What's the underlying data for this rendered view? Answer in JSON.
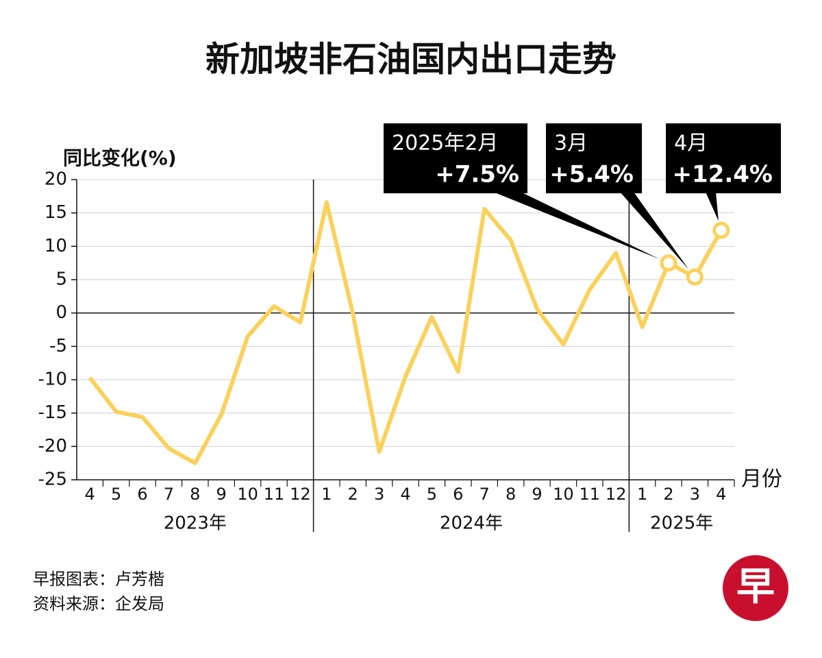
{
  "chart_data": {
    "type": "line",
    "title": "新加坡非石油国内出口走势",
    "y_label": "同比变化(%)",
    "x_label": "月份",
    "groups": [
      {
        "label": "2023年",
        "categories": [
          "4",
          "5",
          "6",
          "7",
          "8",
          "9",
          "10",
          "11",
          "12"
        ]
      },
      {
        "label": "2024年",
        "categories": [
          "1",
          "2",
          "3",
          "4",
          "5",
          "6",
          "7",
          "8",
          "9",
          "10",
          "11",
          "12"
        ]
      },
      {
        "label": "2025年",
        "categories": [
          "1",
          "2",
          "3",
          "4"
        ]
      }
    ],
    "values": [
      -9.7,
      -14.8,
      -15.6,
      -20.3,
      -22.5,
      -15.2,
      -3.5,
      1.0,
      -1.4,
      16.6,
      -0.1,
      -20.8,
      -9.5,
      -0.6,
      -8.8,
      15.6,
      10.9,
      0.6,
      -4.7,
      3.5,
      9.0,
      -2.1,
      7.5,
      5.4,
      12.4
    ],
    "value_labels": [
      null,
      null,
      null,
      null,
      null,
      null,
      null,
      null,
      null,
      null,
      null,
      null,
      null,
      null,
      null,
      null,
      null,
      null,
      null,
      null,
      null,
      null,
      "+7.5%",
      "+5.4%",
      "+12.4%"
    ],
    "callout_titles": [
      null,
      null,
      null,
      null,
      null,
      null,
      null,
      null,
      null,
      null,
      null,
      null,
      null,
      null,
      null,
      null,
      null,
      null,
      null,
      null,
      null,
      null,
      "2025年2月",
      "3月",
      "4月"
    ],
    "color": "#fbd15b",
    "ylim": [
      -25,
      20
    ],
    "yticks": [
      -25,
      -20,
      -15,
      -10,
      -5,
      0,
      5,
      10,
      15,
      20
    ],
    "grid": true
  },
  "footer": {
    "credit": "早报图表：卢芳楷",
    "source": "资料来源：企发局",
    "logo": "早"
  }
}
